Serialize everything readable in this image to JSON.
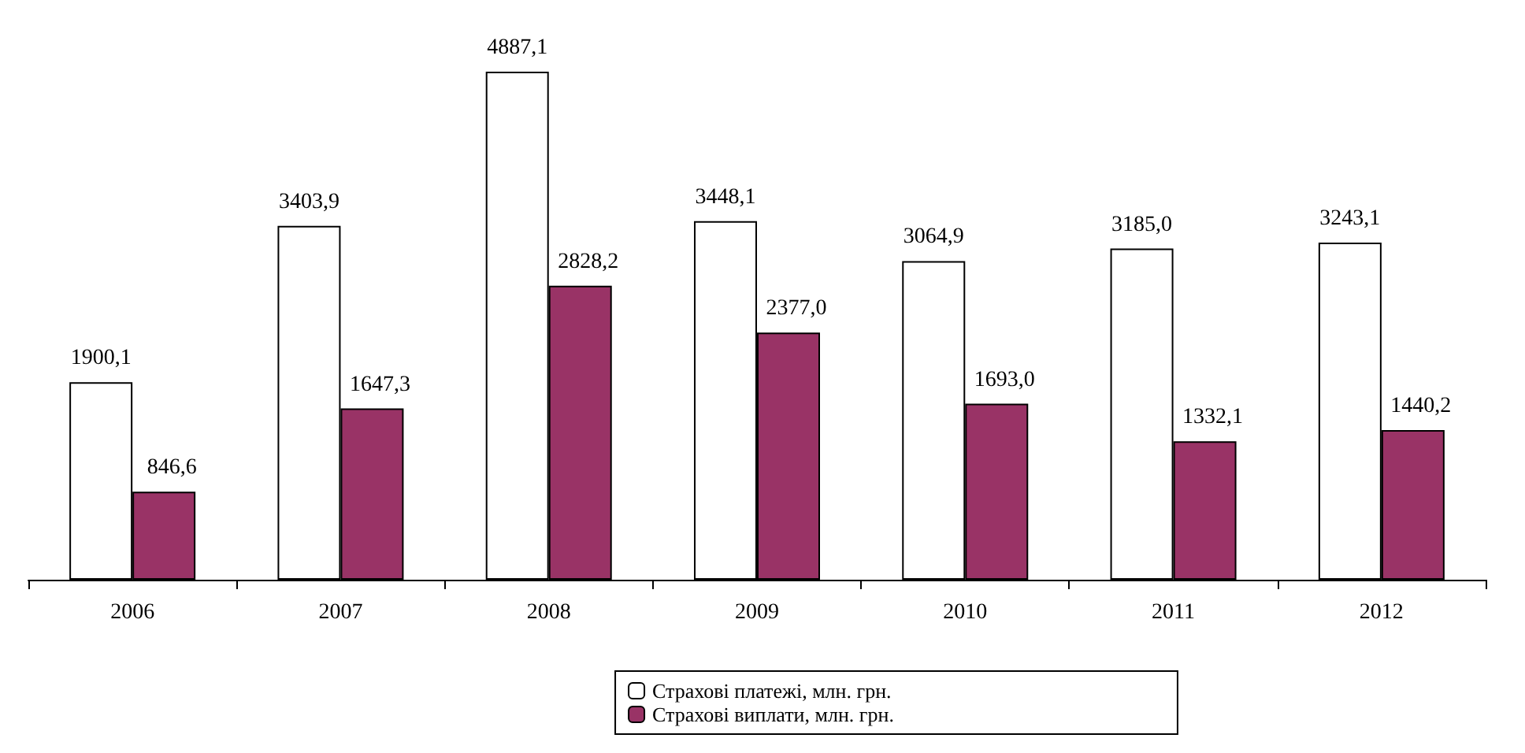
{
  "chart_data": {
    "type": "bar",
    "categories": [
      "2006",
      "2007",
      "2008",
      "2009",
      "2010",
      "2011",
      "2012"
    ],
    "series": [
      {
        "name": "Страхові платежі, млн. грн.",
        "color": "#ffffff",
        "values": [
          1900.1,
          3403.9,
          4887.1,
          3448.1,
          3064.9,
          3185.0,
          3243.1
        ],
        "value_labels": [
          "1900,1",
          "3403,9",
          "4887,1",
          "3448,1",
          "3064,9",
          "3185,0",
          "3243,1"
        ]
      },
      {
        "name": "Страхові виплати, млн. грн.",
        "color": "#993366",
        "values": [
          846.6,
          1647.3,
          2828.2,
          2377.0,
          1693.0,
          1332.1,
          1440.2
        ],
        "value_labels": [
          "846,6",
          "1647,3",
          "2828,2",
          "2377,0",
          "1693,0",
          "1332,1",
          "1440,2"
        ]
      }
    ],
    "legend": "bottom",
    "grid": false
  }
}
